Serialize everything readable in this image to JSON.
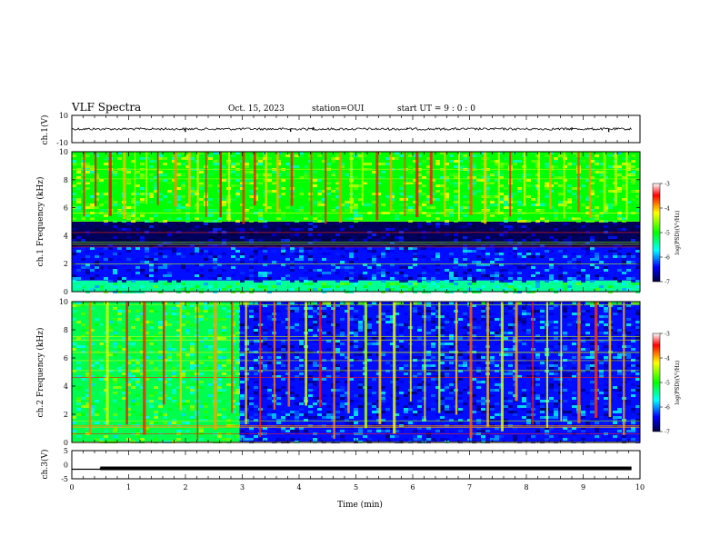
{
  "header": {
    "title": "VLF Spectra",
    "date": "Oct. 15, 2023",
    "station": "station=OUI",
    "start": "start UT =  9 : 0 : 0"
  },
  "colors": {
    "background": "#ffffff",
    "axis": "#000000",
    "trace": "#000000",
    "colormap": [
      "#ffffff",
      "#ff0000",
      "#ffff00",
      "#00ff00",
      "#00ffff",
      "#0000ff",
      "#000040"
    ]
  },
  "chart_data": [
    {
      "type": "line",
      "panel": "ch1-waveform",
      "ylabel": "ch.1(V)",
      "ylim": [
        -10,
        10
      ],
      "yticks": [
        "10",
        "-10"
      ],
      "xlim": [
        0,
        10
      ],
      "baseline": 0,
      "spikes": [
        {
          "x": 2.0,
          "y": -2.2
        },
        {
          "x": 3.85,
          "y": -2.0
        },
        {
          "x": 4.25,
          "y": 1.4
        },
        {
          "x": 5.9,
          "y": 1.0
        },
        {
          "x": 8.8,
          "y": 1.2
        },
        {
          "x": 9.45,
          "y": -2.2
        }
      ]
    },
    {
      "type": "heatmap",
      "panel": "ch1-spectrogram",
      "ylabel": "ch.1 Frequency (kHz)",
      "ylim": [
        0,
        10
      ],
      "yticks": [
        "0",
        "2",
        "4",
        "6",
        "8",
        "10"
      ],
      "xlim": [
        0,
        10
      ],
      "colorbar": {
        "label": "log(PSD)(V²/Hz)",
        "range": [
          -7,
          -3
        ],
        "ticks": [
          "-3",
          "-4",
          "-5",
          "-6",
          "-7"
        ]
      },
      "regions": [
        {
          "from_khz": 0,
          "to_khz": 0.8,
          "level": -5.4
        },
        {
          "from_khz": 0.8,
          "to_khz": 3.2,
          "level": -6.3
        },
        {
          "from_khz": 3.2,
          "to_khz": 5.0,
          "level": -6.9
        },
        {
          "from_khz": 5.0,
          "to_khz": 10,
          "level": -5.0
        }
      ],
      "bursts_at_min": [
        0.2,
        0.4,
        0.65,
        0.9,
        1.1,
        1.3,
        1.5,
        1.8,
        2.05,
        2.2,
        2.35,
        2.6,
        2.75,
        3.0,
        3.2,
        3.4,
        3.6,
        3.85,
        4.2,
        4.45,
        4.7,
        4.9,
        5.1,
        5.35,
        5.6,
        5.85,
        6.05,
        6.3,
        6.55,
        6.8,
        7.0,
        7.25,
        7.5,
        7.7,
        7.95,
        8.2,
        8.4,
        8.65,
        8.9,
        9.1,
        9.35,
        9.55,
        9.75
      ]
    },
    {
      "type": "heatmap",
      "panel": "ch2-spectrogram",
      "ylabel": "ch.2 Frequency (kHz)",
      "ylim": [
        0,
        10
      ],
      "yticks": [
        "0",
        "2",
        "4",
        "6",
        "8",
        "10"
      ],
      "xlim": [
        0,
        10
      ],
      "colorbar": {
        "label": "log(PSD)(V²/Hz)",
        "range": [
          -7,
          -3
        ],
        "ticks": [
          "-3",
          "-4",
          "-5",
          "-6",
          "-7"
        ]
      },
      "regions": [
        {
          "from_min": 0,
          "to_min": 2.95,
          "from_khz": 0,
          "to_khz": 10,
          "level": -5.2
        },
        {
          "from_min": 2.95,
          "to_min": 10,
          "from_khz": 0,
          "to_khz": 10,
          "level": -6.3
        }
      ],
      "bursts_at_min": [
        0.3,
        0.6,
        0.95,
        1.25,
        1.6,
        1.9,
        2.2,
        2.5,
        2.8,
        3.05,
        3.3,
        3.55,
        3.8,
        4.1,
        4.35,
        4.6,
        4.85,
        5.15,
        5.4,
        5.65,
        5.95,
        6.2,
        6.45,
        6.75,
        7.0,
        7.3,
        7.55,
        7.8,
        8.1,
        8.35,
        8.6,
        8.9,
        9.2,
        9.45,
        9.7
      ]
    },
    {
      "type": "line",
      "panel": "ch3-signal",
      "ylabel": "ch.3(V)",
      "ylim": [
        -5,
        5
      ],
      "yticks": [
        "5",
        "0",
        "-5"
      ],
      "xlim": [
        0,
        10
      ],
      "x": [
        0,
        0.5,
        0.5,
        9.85
      ],
      "y": [
        -1.6,
        -1.6,
        -1.3,
        -1.3
      ],
      "xlabel": "Time (min)",
      "xticks": [
        "0",
        "1",
        "2",
        "3",
        "4",
        "5",
        "6",
        "7",
        "8",
        "9",
        "10"
      ]
    }
  ]
}
